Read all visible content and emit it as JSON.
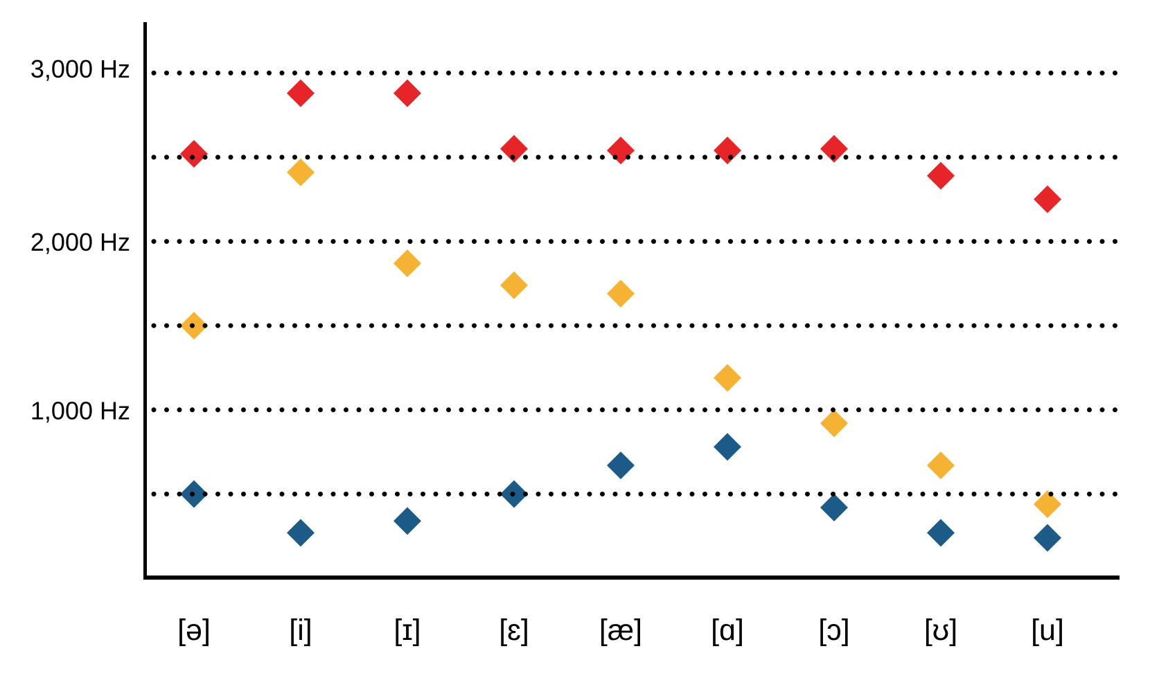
{
  "chart_data": {
    "type": "scatter",
    "title": "",
    "marker": "diamond",
    "legend": "none",
    "grid_style": "dotted",
    "categories": [
      "[ə]",
      "[i]",
      "[ɪ]",
      "[ɛ]",
      "[æ]",
      "[ɑ]",
      "[ɔ]",
      "[ʊ]",
      "[u]"
    ],
    "series": [
      {
        "name": "red",
        "color": "#e72427",
        "values": [
          2520,
          2880,
          2880,
          2550,
          2540,
          2540,
          2550,
          2390,
          2250
        ]
      },
      {
        "name": "yellow",
        "color": "#f6b333",
        "values": [
          1500,
          2410,
          1870,
          1740,
          1690,
          1190,
          920,
          670,
          440
        ]
      },
      {
        "name": "blue",
        "color": "#1c5a88",
        "values": [
          500,
          270,
          340,
          500,
          670,
          780,
          420,
          270,
          240
        ]
      }
    ],
    "y_axis": {
      "unit": "Hz",
      "range": [
        0,
        3300
      ],
      "gridlines": [
        500,
        1000,
        1500,
        2000,
        2500,
        3000
      ],
      "tick_labels": [
        {
          "value": 3000,
          "label": "3,000 Hz"
        },
        {
          "value": 2000,
          "label": "2,000 Hz"
        },
        {
          "value": 1000,
          "label": "1,000 Hz"
        }
      ]
    },
    "colors": {
      "axis": "#000000",
      "grid_dots": "#000000",
      "text": "#000000",
      "background": "#ffffff"
    }
  }
}
